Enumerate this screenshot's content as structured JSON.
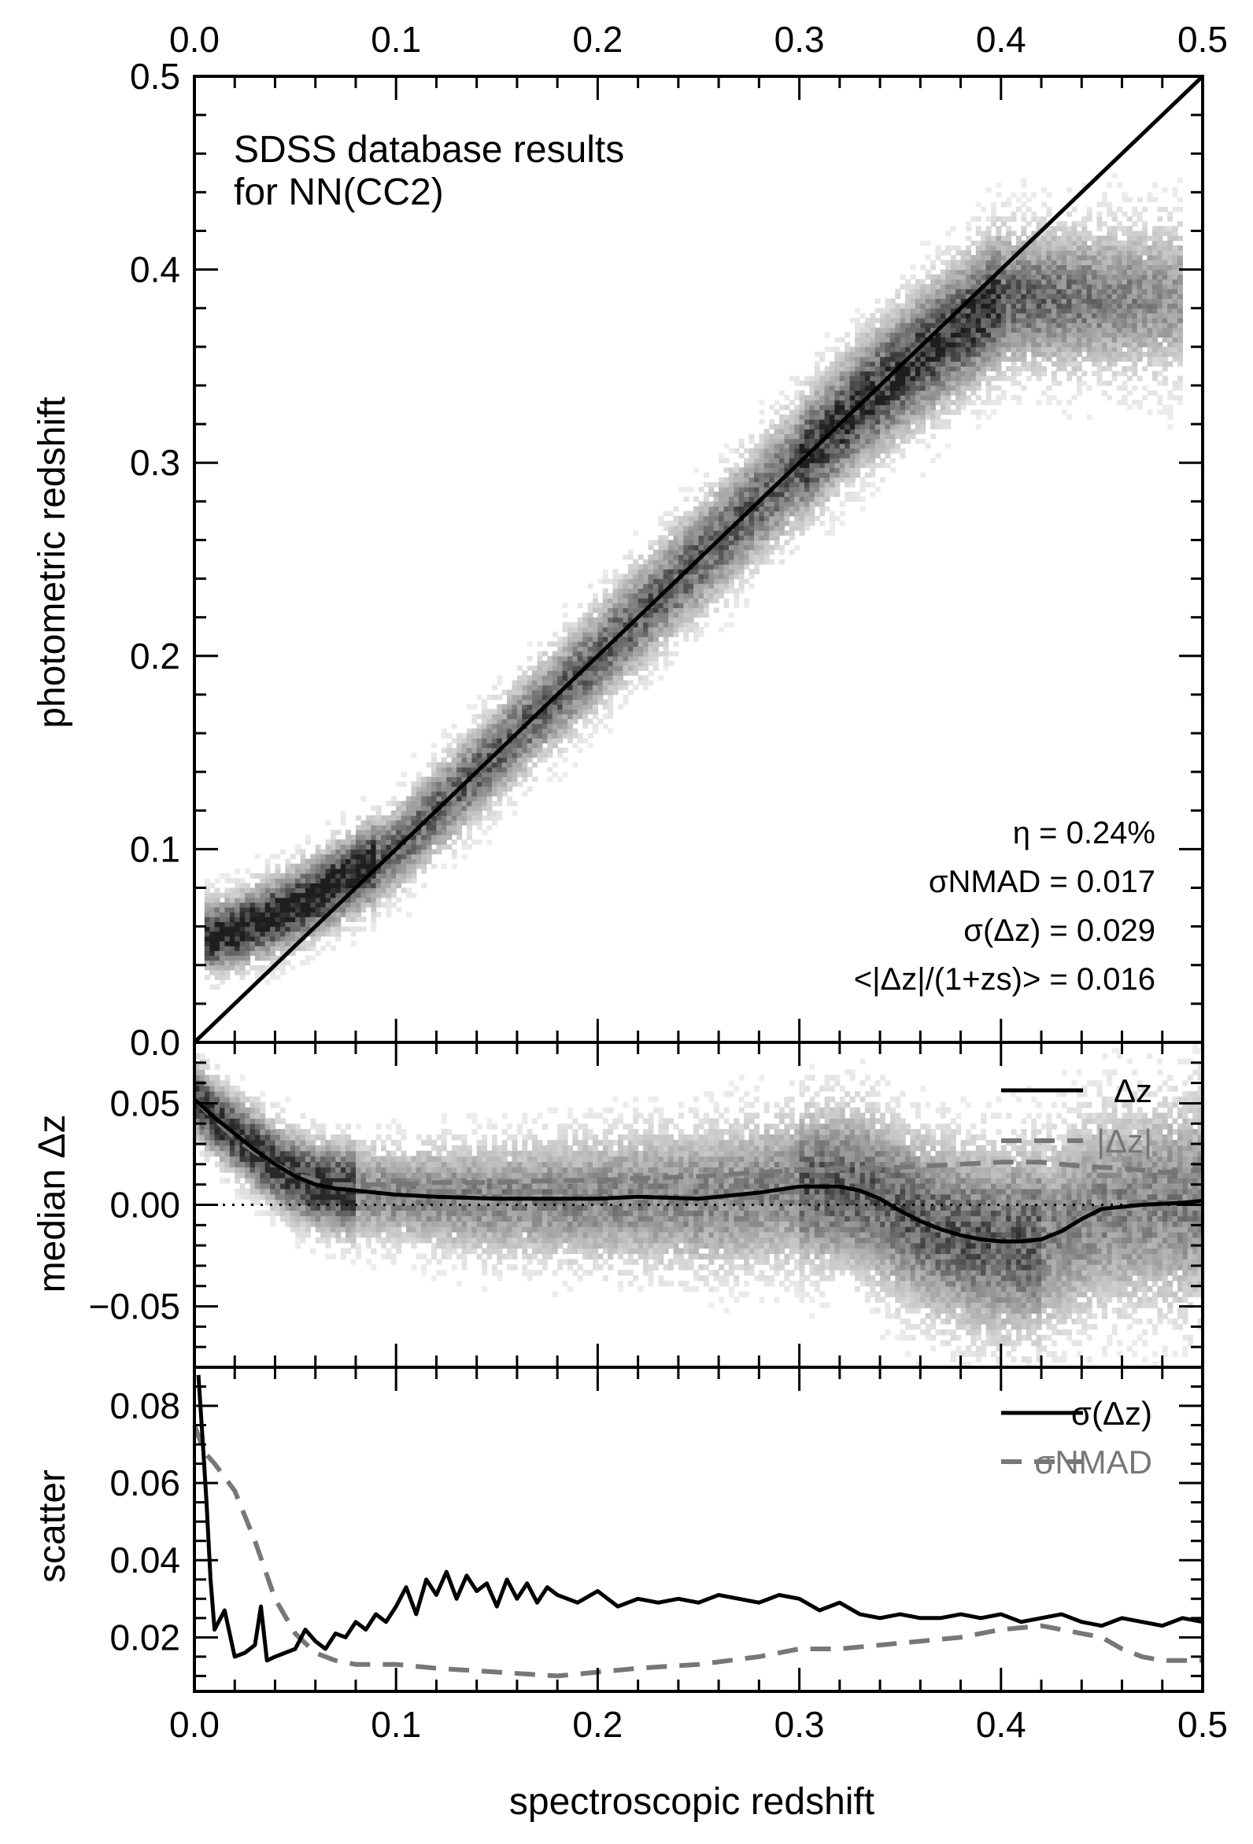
{
  "figure": {
    "xlabel": "spectroscopic redshift",
    "xlim": [
      0.0,
      0.5
    ],
    "xticks": [
      "0.0",
      "0.1",
      "0.2",
      "0.3",
      "0.4",
      "0.5"
    ],
    "xticks_values": [
      0.0,
      0.1,
      0.2,
      0.3,
      0.4,
      0.5
    ]
  },
  "chart_data": [
    {
      "type": "scatter",
      "panel": "top",
      "title": "SDSS database results",
      "subtitle": "for NN(CC2)",
      "xlabel": "spectroscopic redshift",
      "ylabel": "photometric redshift",
      "xlim": [
        0.0,
        0.5
      ],
      "ylim": [
        0.0,
        0.5
      ],
      "xticks": [
        "0.0",
        "0.1",
        "0.2",
        "0.3",
        "0.4",
        "0.5"
      ],
      "yticks": [
        "0.0",
        "0.1",
        "0.2",
        "0.3",
        "0.4",
        "0.5"
      ],
      "representation": "2D density histogram (grey scale) with one-to-one line",
      "density_ridge": {
        "x": [
          0.01,
          0.02,
          0.03,
          0.05,
          0.07,
          0.1,
          0.15,
          0.2,
          0.25,
          0.3,
          0.33,
          0.36,
          0.4
        ],
        "y": [
          0.055,
          0.057,
          0.062,
          0.07,
          0.082,
          0.1,
          0.15,
          0.2,
          0.25,
          0.3,
          0.33,
          0.355,
          0.385
        ]
      },
      "one_to_one_line": {
        "x": [
          0.0,
          0.5
        ],
        "y": [
          0.0,
          0.5
        ]
      },
      "stats": [
        "η = 0.24%",
        "σNMAD = 0.017",
        "σ(Δz) = 0.029",
        "<|Δz|/(1+zs)> = 0.016"
      ]
    },
    {
      "type": "line",
      "panel": "middle",
      "ylabel": "median Δz",
      "xlim": [
        0.0,
        0.5
      ],
      "ylim": [
        -0.08,
        0.08
      ],
      "yticks": [
        "0.05",
        "0.00",
        "−0.05"
      ],
      "yticks_values": [
        0.05,
        0.0,
        -0.05
      ],
      "background": "2D density histogram of Δz",
      "reference_line": {
        "y": 0.0,
        "style": "dotted"
      },
      "series": [
        {
          "name": "Δz",
          "style": "solid",
          "color": "#000000",
          "x": [
            0.0,
            0.01,
            0.02,
            0.03,
            0.04,
            0.05,
            0.06,
            0.07,
            0.08,
            0.1,
            0.12,
            0.15,
            0.18,
            0.2,
            0.22,
            0.25,
            0.28,
            0.3,
            0.32,
            0.33,
            0.34,
            0.35,
            0.36,
            0.37,
            0.38,
            0.39,
            0.4,
            0.41,
            0.42,
            0.43,
            0.44,
            0.45,
            0.47,
            0.49,
            0.5
          ],
          "y": [
            0.052,
            0.043,
            0.035,
            0.027,
            0.02,
            0.014,
            0.01,
            0.008,
            0.007,
            0.005,
            0.004,
            0.003,
            0.003,
            0.003,
            0.004,
            0.003,
            0.006,
            0.009,
            0.009,
            0.007,
            0.003,
            -0.003,
            -0.008,
            -0.012,
            -0.015,
            -0.017,
            -0.018,
            -0.018,
            -0.017,
            -0.013,
            -0.007,
            -0.002,
            0.0,
            0.001,
            0.002
          ]
        },
        {
          "name": "|Δz|",
          "style": "dashed",
          "color": "#777777",
          "x": [
            0.0,
            0.01,
            0.02,
            0.03,
            0.04,
            0.05,
            0.06,
            0.07,
            0.08,
            0.1,
            0.12,
            0.15,
            0.18,
            0.2,
            0.22,
            0.25,
            0.28,
            0.3,
            0.32,
            0.34,
            0.36,
            0.38,
            0.4,
            0.42,
            0.44,
            0.46,
            0.48,
            0.5
          ],
          "y": [
            0.052,
            0.042,
            0.033,
            0.026,
            0.02,
            0.015,
            0.012,
            0.01,
            0.01,
            0.01,
            0.011,
            0.011,
            0.012,
            0.012,
            0.013,
            0.014,
            0.016,
            0.017,
            0.018,
            0.018,
            0.019,
            0.02,
            0.021,
            0.021,
            0.019,
            0.018,
            0.016,
            0.017
          ]
        }
      ]
    },
    {
      "type": "line",
      "panel": "bottom",
      "ylabel": "scatter",
      "xlabel": "spectroscopic redshift",
      "xlim": [
        0.0,
        0.5
      ],
      "ylim": [
        0.006,
        0.09
      ],
      "yticks": [
        "0.02",
        "0.04",
        "0.06",
        "0.08"
      ],
      "yticks_values": [
        0.02,
        0.04,
        0.06,
        0.08
      ],
      "series": [
        {
          "name": "σ(Δz)",
          "style": "solid",
          "color": "#000000",
          "x": [
            0.002,
            0.004,
            0.006,
            0.008,
            0.01,
            0.015,
            0.02,
            0.025,
            0.03,
            0.033,
            0.036,
            0.04,
            0.045,
            0.05,
            0.055,
            0.06,
            0.065,
            0.07,
            0.075,
            0.08,
            0.085,
            0.09,
            0.095,
            0.1,
            0.105,
            0.11,
            0.115,
            0.12,
            0.125,
            0.13,
            0.135,
            0.14,
            0.145,
            0.15,
            0.155,
            0.16,
            0.165,
            0.17,
            0.175,
            0.18,
            0.19,
            0.2,
            0.21,
            0.22,
            0.23,
            0.24,
            0.25,
            0.26,
            0.27,
            0.28,
            0.29,
            0.3,
            0.31,
            0.32,
            0.33,
            0.34,
            0.35,
            0.36,
            0.37,
            0.38,
            0.39,
            0.4,
            0.41,
            0.42,
            0.43,
            0.44,
            0.45,
            0.46,
            0.47,
            0.48,
            0.49,
            0.5
          ],
          "y": [
            0.088,
            0.072,
            0.055,
            0.035,
            0.022,
            0.027,
            0.015,
            0.016,
            0.018,
            0.028,
            0.014,
            0.015,
            0.016,
            0.017,
            0.022,
            0.019,
            0.017,
            0.021,
            0.02,
            0.024,
            0.022,
            0.026,
            0.024,
            0.028,
            0.033,
            0.026,
            0.035,
            0.031,
            0.037,
            0.03,
            0.036,
            0.032,
            0.034,
            0.028,
            0.035,
            0.03,
            0.034,
            0.029,
            0.033,
            0.031,
            0.029,
            0.032,
            0.028,
            0.03,
            0.029,
            0.03,
            0.029,
            0.031,
            0.03,
            0.029,
            0.031,
            0.03,
            0.027,
            0.029,
            0.026,
            0.025,
            0.026,
            0.025,
            0.025,
            0.026,
            0.025,
            0.026,
            0.024,
            0.025,
            0.026,
            0.024,
            0.023,
            0.025,
            0.024,
            0.023,
            0.025,
            0.024
          ]
        },
        {
          "name": "σNMAD",
          "style": "dashed",
          "color": "#777777",
          "x": [
            0.0,
            0.005,
            0.01,
            0.02,
            0.03,
            0.04,
            0.05,
            0.06,
            0.07,
            0.08,
            0.09,
            0.1,
            0.12,
            0.15,
            0.18,
            0.2,
            0.22,
            0.25,
            0.28,
            0.3,
            0.32,
            0.34,
            0.36,
            0.38,
            0.4,
            0.42,
            0.43,
            0.44,
            0.45,
            0.46,
            0.47,
            0.48,
            0.49,
            0.5
          ],
          "y": [
            0.075,
            0.068,
            0.065,
            0.058,
            0.045,
            0.03,
            0.021,
            0.016,
            0.014,
            0.013,
            0.013,
            0.013,
            0.012,
            0.011,
            0.01,
            0.011,
            0.012,
            0.013,
            0.015,
            0.017,
            0.017,
            0.018,
            0.019,
            0.02,
            0.022,
            0.023,
            0.022,
            0.021,
            0.02,
            0.017,
            0.015,
            0.014,
            0.014,
            0.014
          ]
        }
      ]
    }
  ]
}
